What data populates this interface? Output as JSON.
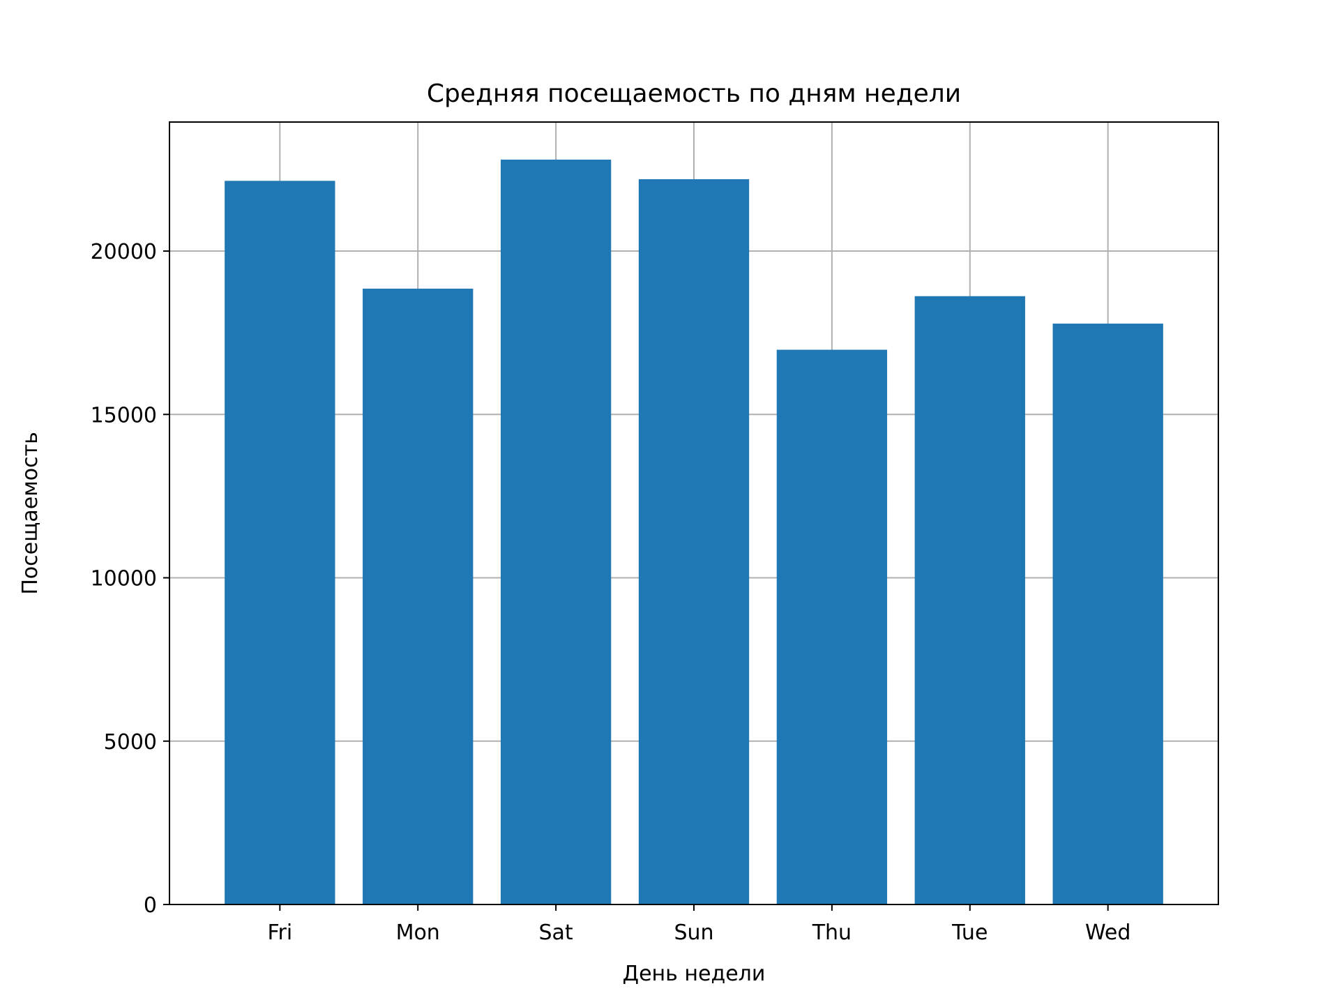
{
  "chart_data": {
    "type": "bar",
    "title": "Средняя посещаемость по дням недели",
    "xlabel": "День недели",
    "ylabel": "Посещаемость",
    "categories": [
      "Fri",
      "Mon",
      "Sat",
      "Sun",
      "Thu",
      "Tue",
      "Wed"
    ],
    "values": [
      22150,
      18850,
      22800,
      22200,
      16980,
      18620,
      17780
    ],
    "ylim": [
      0,
      23950
    ],
    "yticks": [
      0,
      5000,
      10000,
      15000,
      20000
    ],
    "ytick_labels": [
      "0",
      "5000",
      "10000",
      "15000",
      "20000"
    ],
    "grid": true,
    "bar_color": "#1f77b4",
    "grid_color": "#b0b0b0"
  }
}
